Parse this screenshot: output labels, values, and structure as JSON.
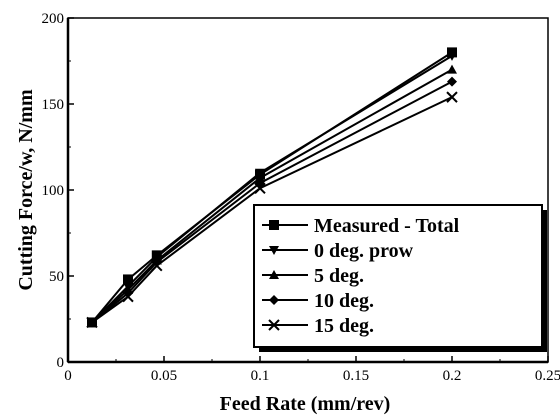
{
  "chart_data": {
    "type": "line",
    "title": "",
    "xlabel": "Feed Rate (mm/rev)",
    "ylabel": "Cutting Force/w, N/mm",
    "xlim": [
      0,
      0.25
    ],
    "ylim": [
      0,
      200
    ],
    "xticks": [
      0,
      0.05,
      0.1,
      0.15,
      0.2,
      0.25
    ],
    "yticks": [
      0,
      50,
      100,
      150,
      200
    ],
    "xtick_labels": [
      "0",
      "0.05",
      "0.1",
      "0.15",
      "0.2",
      "0.25"
    ],
    "ytick_labels": [
      "0",
      "50",
      "100",
      "150",
      "200"
    ],
    "grid": false,
    "legend_position": "bottom-right",
    "series": [
      {
        "name": "Measured - Total",
        "marker": "square",
        "x": [
          0.0125,
          0.03125,
          0.04625,
          0.1,
          0.2
        ],
        "y": [
          23,
          48,
          62,
          109,
          180
        ]
      },
      {
        "name": "0 deg. prow",
        "marker": "triangle-down",
        "x": [
          0.0125,
          0.03125,
          0.04625,
          0.1,
          0.2
        ],
        "y": [
          23,
          44,
          61,
          110,
          178
        ]
      },
      {
        "name": "5 deg.",
        "marker": "triangle-up",
        "x": [
          0.0125,
          0.03125,
          0.04625,
          0.1,
          0.2
        ],
        "y": [
          23,
          42,
          59,
          107,
          170
        ]
      },
      {
        "name": "10 deg.",
        "marker": "diamond",
        "x": [
          0.0125,
          0.03125,
          0.04625,
          0.1,
          0.2
        ],
        "y": [
          23,
          40,
          58,
          104,
          163
        ]
      },
      {
        "name": "15 deg.",
        "marker": "x",
        "x": [
          0.0125,
          0.03125,
          0.04625,
          0.1,
          0.2
        ],
        "y": [
          23,
          38,
          56,
          101,
          154
        ]
      }
    ]
  }
}
